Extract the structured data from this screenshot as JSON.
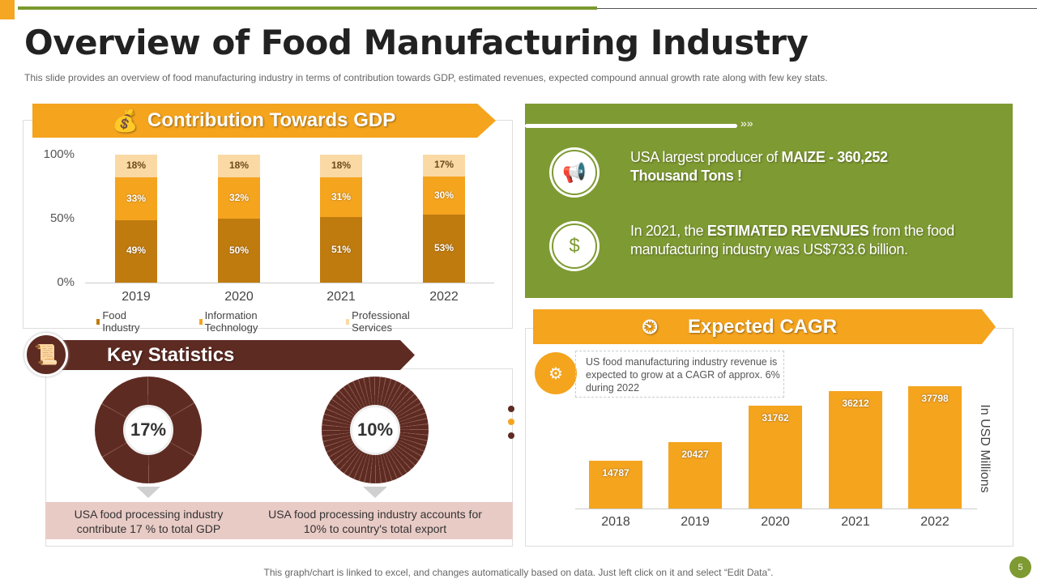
{
  "title": "Overview of Food Manufacturing Industry",
  "subtitle": "This slide provides  an overview  of food manufacturing  industry in terms of contribution towards GDP, estimated revenues,  expected compound  annual growth rate along with few key stats.",
  "colors": {
    "green": "#7e9a32",
    "orange": "#f5a41e",
    "brown": "#5e2b22",
    "food": "#c07b0f",
    "it": "#f5a41e",
    "ps": "#fad9a5"
  },
  "gdp": {
    "heading": "Contribution Towards GDP",
    "icon": "money-hand-icon"
  },
  "highlights": [
    {
      "icon": "marketing-icon",
      "pre": "USA largest producer of ",
      "bold": "MAIZE - 360,252 Thousand Tons !",
      "post": ""
    },
    {
      "icon": "dollar-hand-icon",
      "pre": "In 2021, the ",
      "bold": "ESTIMATED REVENUES",
      "post": " from the food manufacturing industry was US$733.6 billion."
    }
  ],
  "cagr": {
    "heading": "Expected CAGR",
    "icon": "head-clock-icon",
    "note": "US food manufacturing  industry revenue  is expected to grow at a CAGR of approx. 6% during 2022",
    "note_icon": "conveyor-icon"
  },
  "key_stats": {
    "heading": "Key Statistics",
    "icon": "document-key-icon",
    "items": [
      {
        "value": "17%",
        "text": "USA food processing industry contribute 17 % to total GDP"
      },
      {
        "value": "10%",
        "text": "USA food processing industry accounts for 10% to country's total export"
      }
    ]
  },
  "footer": "This graph/chart is linked to excel, and changes automatically based on data. Just left click on it and select “Edit Data”.",
  "page_number": "5",
  "chart_data": [
    {
      "type": "bar",
      "stacked": true,
      "categories": [
        "2019",
        "2020",
        "2021",
        "2022"
      ],
      "series": [
        {
          "name": "Food Industry",
          "values": [
            49,
            50,
            51,
            53
          ]
        },
        {
          "name": "Information Technology",
          "values": [
            33,
            32,
            31,
            30
          ]
        },
        {
          "name": "Professional Services",
          "values": [
            18,
            18,
            18,
            17
          ]
        }
      ],
      "yticks": [
        "0%",
        "50%",
        "100%"
      ],
      "ylim": [
        0,
        100
      ],
      "legend": "bottom",
      "grid": false
    },
    {
      "type": "bar",
      "categories": [
        "2018",
        "2019",
        "2020",
        "2021",
        "2022"
      ],
      "values": [
        14787,
        20427,
        31762,
        36212,
        37798
      ],
      "ylabel": "In USD Millions",
      "grid": false
    }
  ]
}
